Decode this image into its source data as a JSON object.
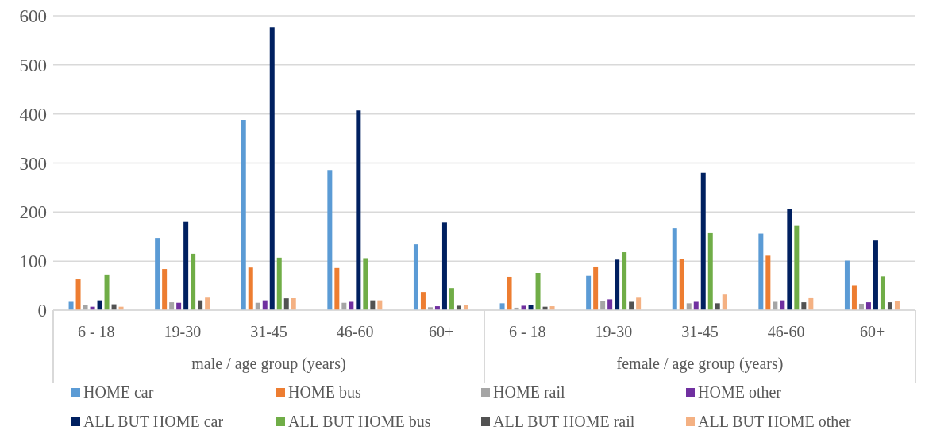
{
  "chart_data": {
    "type": "bar",
    "categories": [
      "6 - 18",
      "19-30",
      "31-45",
      "46-60",
      "60+",
      "6 - 18",
      "19-30",
      "31-45",
      "46-60",
      "60+"
    ],
    "annotations": [
      "male / age group (years)",
      "female / age group (years)"
    ],
    "series": [
      {
        "name": "HOME car",
        "color": "#5b9bd5",
        "values": [
          17,
          147,
          388,
          286,
          134,
          14,
          70,
          168,
          156,
          101
        ]
      },
      {
        "name": "HOME bus",
        "color": "#ed7d31",
        "values": [
          63,
          84,
          87,
          86,
          37,
          68,
          89,
          105,
          111,
          51
        ]
      },
      {
        "name": "HOME rail",
        "color": "#a5a5a5",
        "values": [
          10,
          16,
          15,
          15,
          6,
          5,
          19,
          14,
          17,
          13
        ]
      },
      {
        "name": "HOME other",
        "color": "#7030a0",
        "values": [
          7,
          15,
          20,
          17,
          8,
          9,
          22,
          17,
          20,
          16
        ]
      },
      {
        "name": "ALL BUT HOME car",
        "color": "#002060",
        "values": [
          20,
          180,
          577,
          407,
          179,
          11,
          103,
          280,
          207,
          142
        ]
      },
      {
        "name": "ALL BUT HOME bus",
        "color": "#70ad47",
        "values": [
          73,
          115,
          107,
          106,
          45,
          76,
          118,
          157,
          172,
          69
        ]
      },
      {
        "name": "ALL BUT HOME rail",
        "color": "#525252",
        "values": [
          12,
          20,
          24,
          20,
          9,
          7,
          17,
          14,
          16,
          16
        ]
      },
      {
        "name": "ALL BUT HOME other",
        "color": "#f4b183",
        "values": [
          7,
          27,
          25,
          20,
          10,
          8,
          27,
          32,
          26,
          19
        ]
      }
    ],
    "ylim": [
      0,
      600
    ],
    "yticks": [
      0,
      100,
      200,
      300,
      400,
      500,
      600
    ],
    "grid": "y",
    "legend": "bottom"
  }
}
